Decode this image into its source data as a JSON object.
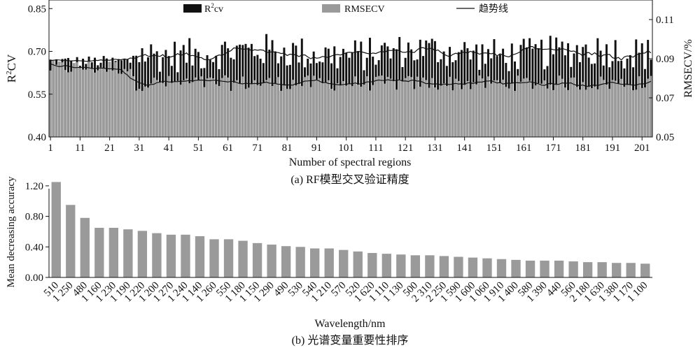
{
  "chart_data": [
    {
      "type": "bar",
      "panel": "a",
      "caption": "(a) RF模型交叉验证精度",
      "xlabel": "Number of spectral regions",
      "ylabel_left": "R",
      "ylabel_left_sup": "2",
      "ylabel_left_tail": "CV",
      "ylabel_right": "RMSECV/%",
      "ylim_left": [
        0.4,
        0.88
      ],
      "ylim_right": [
        0.05,
        0.12
      ],
      "yticks_left": [
        0.4,
        0.55,
        0.7,
        0.85
      ],
      "yticks_right": [
        0.05,
        0.07,
        0.09,
        0.11
      ],
      "yticks_left_labels": [
        "0.40",
        "0.55",
        "0.70",
        "0.85"
      ],
      "yticks_right_labels": [
        "0.05",
        "0.07",
        "0.09",
        "0.11"
      ],
      "xticks": [
        1,
        11,
        21,
        31,
        41,
        51,
        61,
        71,
        81,
        91,
        101,
        111,
        121,
        131,
        141,
        151,
        161,
        171,
        181,
        191,
        201
      ],
      "x_count": 204,
      "legend": {
        "r2cv": {
          "label": "R",
          "sup": "2",
          "tail": "cv"
        },
        "rmsecv": {
          "label": "RMSECV"
        },
        "trend": {
          "label": "趋势线"
        }
      },
      "colors": {
        "r2cv": "#111111",
        "rmsecv": "#9a9a9a",
        "trend": "#111111"
      },
      "series": [
        {
          "name": "R²cv",
          "axis": "left",
          "generator": {
            "phase1_end": 28,
            "phase1_mean": 0.665,
            "phase1_amp": 0.02,
            "phase2_mean": 0.695,
            "phase2_amp": 0.06
          }
        },
        {
          "name": "RMSECV",
          "axis": "right",
          "generator": {
            "phase1_end": 28,
            "phase1_mean": 0.0855,
            "phase1_amp": 0.004,
            "phase2_mean": 0.0775,
            "phase2_amp": 0.004
          }
        }
      ],
      "grid": false
    },
    {
      "type": "bar",
      "panel": "b",
      "caption": "(b) 光谱变量重要性排序",
      "xlabel": "Wavelength/nm",
      "ylabel": "Mean decreasing accuracy",
      "ylim": [
        0,
        1.3
      ],
      "yticks": [
        0.0,
        0.4,
        0.8,
        1.2
      ],
      "yticks_labels": [
        "0.00",
        "0.40",
        "0.80",
        "1.20"
      ],
      "categories": [
        "510",
        "1 250",
        "480",
        "1 160",
        "1 230",
        "1 190",
        "1 220",
        "1 200",
        "1 270",
        "1 240",
        "1 140",
        "1 260",
        "550",
        "1 180",
        "1 150",
        "1 290",
        "490",
        "530",
        "540",
        "1 210",
        "570",
        "520",
        "1 620",
        "1 110",
        "1 130",
        "500",
        "2 310",
        "2 250",
        "1 590",
        "1 600",
        "1 060",
        "1 910",
        "1 400",
        "580",
        "1 390",
        "440",
        "560",
        "2 180",
        "1 630",
        "1 380",
        "1 170",
        "1 100"
      ],
      "values": [
        1.25,
        0.95,
        0.78,
        0.65,
        0.65,
        0.63,
        0.61,
        0.58,
        0.56,
        0.56,
        0.54,
        0.5,
        0.5,
        0.48,
        0.45,
        0.43,
        0.41,
        0.4,
        0.38,
        0.38,
        0.36,
        0.34,
        0.32,
        0.31,
        0.3,
        0.29,
        0.29,
        0.28,
        0.27,
        0.26,
        0.25,
        0.24,
        0.23,
        0.22,
        0.22,
        0.22,
        0.21,
        0.2,
        0.2,
        0.19,
        0.19,
        0.18
      ],
      "color": "#9a9a9a",
      "grid": false
    }
  ]
}
